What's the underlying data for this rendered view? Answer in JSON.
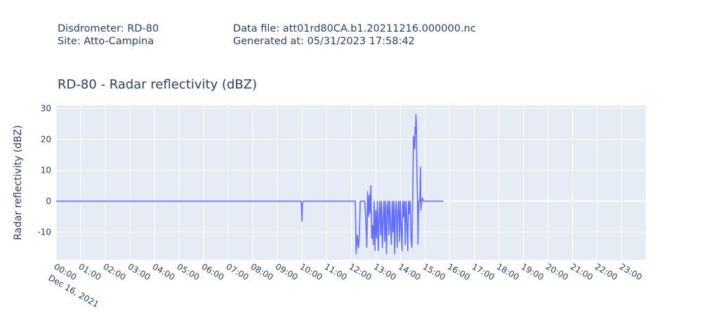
{
  "header": {
    "disdrometer": "Disdrometer: RD-80",
    "site": "Site: Atto-Campina",
    "data_file": "Data file: att01rd80CA.b1.20211216.000000.nc",
    "generated_at": "Generated at: 05/31/2023 17:58:42"
  },
  "colors": {
    "line": "#636efa",
    "plot_bg": "#e5ecf6",
    "grid": "#ffffff",
    "text": "#2a3f5f"
  },
  "chart_data": {
    "type": "line",
    "title": "RD-80 - Radar reflectivity  (dBZ)",
    "xlabel": "",
    "ylabel": "Radar reflectivity  (dBZ)",
    "xlim": [
      "2021-12-16 00:00",
      "2021-12-16 23:59"
    ],
    "ylim": [
      -19,
      31
    ],
    "yticks": [
      30,
      20,
      10,
      0,
      -10
    ],
    "xticks": [
      "00:00",
      "01:00",
      "02:00",
      "03:00",
      "04:00",
      "05:00",
      "06:00",
      "07:00",
      "08:00",
      "09:00",
      "10:00",
      "11:00",
      "12:00",
      "13:00",
      "14:00",
      "15:00",
      "16:00",
      "17:00",
      "18:00",
      "19:00",
      "20:00",
      "21:00",
      "22:00",
      "23:00"
    ],
    "xtick_date_label": "Dec 16, 2021",
    "grid": true,
    "series": [
      {
        "x": [
          "00:00",
          "09:58",
          "10:00",
          "10:01",
          "10:03",
          "12:00",
          "12:10",
          "12:12",
          "12:15",
          "12:18",
          "12:20",
          "12:22",
          "12:25",
          "12:28",
          "12:30",
          "12:33",
          "12:36",
          "12:38",
          "12:40",
          "12:42",
          "12:44",
          "12:46",
          "12:48",
          "12:50",
          "12:52",
          "12:54",
          "12:56",
          "12:58",
          "13:00",
          "13:02",
          "13:04",
          "13:06",
          "13:08",
          "13:10",
          "13:12",
          "13:14",
          "13:16",
          "13:18",
          "13:20",
          "13:22",
          "13:24",
          "13:26",
          "13:28",
          "13:30",
          "13:32",
          "13:34",
          "13:36",
          "13:38",
          "13:40",
          "13:42",
          "13:44",
          "13:46",
          "13:48",
          "13:50",
          "13:52",
          "13:54",
          "13:56",
          "13:58",
          "14:00",
          "14:02",
          "14:04",
          "14:06",
          "14:08",
          "14:10",
          "14:12",
          "14:14",
          "14:16",
          "14:18",
          "14:20",
          "14:22",
          "14:24",
          "14:26",
          "14:28",
          "14:30",
          "14:31",
          "14:32",
          "14:33",
          "14:34",
          "14:35",
          "14:36",
          "14:37",
          "14:38",
          "14:39",
          "14:40",
          "14:41",
          "14:42",
          "14:43",
          "14:44",
          "14:45",
          "14:46",
          "14:47",
          "14:48",
          "14:49",
          "14:50",
          "14:52",
          "14:54",
          "14:55",
          "14:56",
          "14:57",
          "14:58",
          "15:00",
          "15:02",
          "15:05",
          "15:10",
          "15:20",
          "15:30",
          "15:45"
        ],
        "y": [
          0,
          0,
          -6.5,
          -1,
          0,
          0,
          0,
          -17,
          -11,
          -15,
          -11,
          0,
          0,
          0,
          0,
          0,
          -7,
          -15,
          3,
          -5,
          2,
          -4,
          5,
          -12,
          -8,
          -14,
          0,
          -16,
          -3,
          -12,
          0,
          -16,
          -5,
          0,
          -11,
          0,
          -15,
          -6,
          0,
          -13,
          0,
          -17,
          -2,
          0,
          -11,
          0,
          -8,
          -14,
          0,
          -10,
          0,
          -17,
          -3,
          0,
          -15,
          -4,
          0,
          -13,
          0,
          -9,
          -16,
          0,
          -5,
          0,
          -14,
          0,
          -7,
          -16,
          0,
          -4,
          0,
          -12,
          -15,
          0,
          10,
          21,
          18,
          20,
          17,
          24,
          22,
          28,
          25,
          13,
          5,
          -2,
          -14,
          -4,
          0,
          0,
          0,
          2,
          11,
          -3,
          0,
          1,
          0,
          0,
          0,
          0,
          0,
          0,
          0,
          0,
          0,
          0,
          0
        ]
      }
    ]
  }
}
